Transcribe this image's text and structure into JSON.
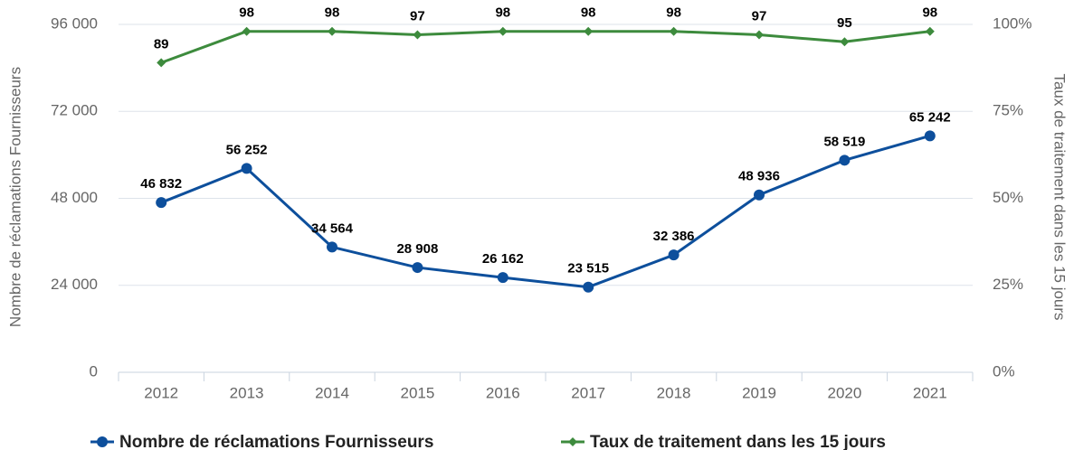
{
  "chart_data": {
    "type": "line",
    "y_label": "Nombre de réclamations Fournisseurs",
    "y2_label": "Taux de traitement dans les 15 jours",
    "categories": [
      "2012",
      "2013",
      "2014",
      "2015",
      "2016",
      "2017",
      "2018",
      "2019",
      "2020",
      "2021"
    ],
    "series": [
      {
        "name": "Nombre de réclamations Fournisseurs",
        "color": "#0d4f9c",
        "values": [
          46832,
          56252,
          34564,
          28908,
          26162,
          23515,
          32386,
          48936,
          58519,
          65242
        ],
        "value_labels": [
          "46 832",
          "56 252",
          "34 564",
          "28 908",
          "26 162",
          "23 515",
          "32 386",
          "48 936",
          "58 519",
          "65 242"
        ]
      },
      {
        "name": "Taux de traitement dans les 15 jours",
        "color": "#3d8b3d",
        "axis": "y2",
        "values": [
          89,
          98,
          98,
          97,
          98,
          98,
          98,
          97,
          95,
          98
        ]
      }
    ],
    "ylim": [
      0,
      96000
    ],
    "yticks": [
      0,
      {
        "value": 24000,
        "label": "24 000"
      },
      {
        "value": 48000,
        "label": "48 000"
      },
      {
        "value": 72000,
        "label": "72 000"
      },
      {
        "value": 96000,
        "label": "96 000"
      }
    ],
    "y2lim": [
      0,
      100
    ],
    "y2ticks": [
      {
        "value": 0,
        "label": "0%"
      },
      {
        "value": 25,
        "label": "25%"
      },
      {
        "value": 50,
        "label": "50%"
      },
      {
        "value": 75,
        "label": "75%"
      },
      {
        "value": 100,
        "label": "100%"
      }
    ],
    "grid": true,
    "legend": "bottom"
  }
}
